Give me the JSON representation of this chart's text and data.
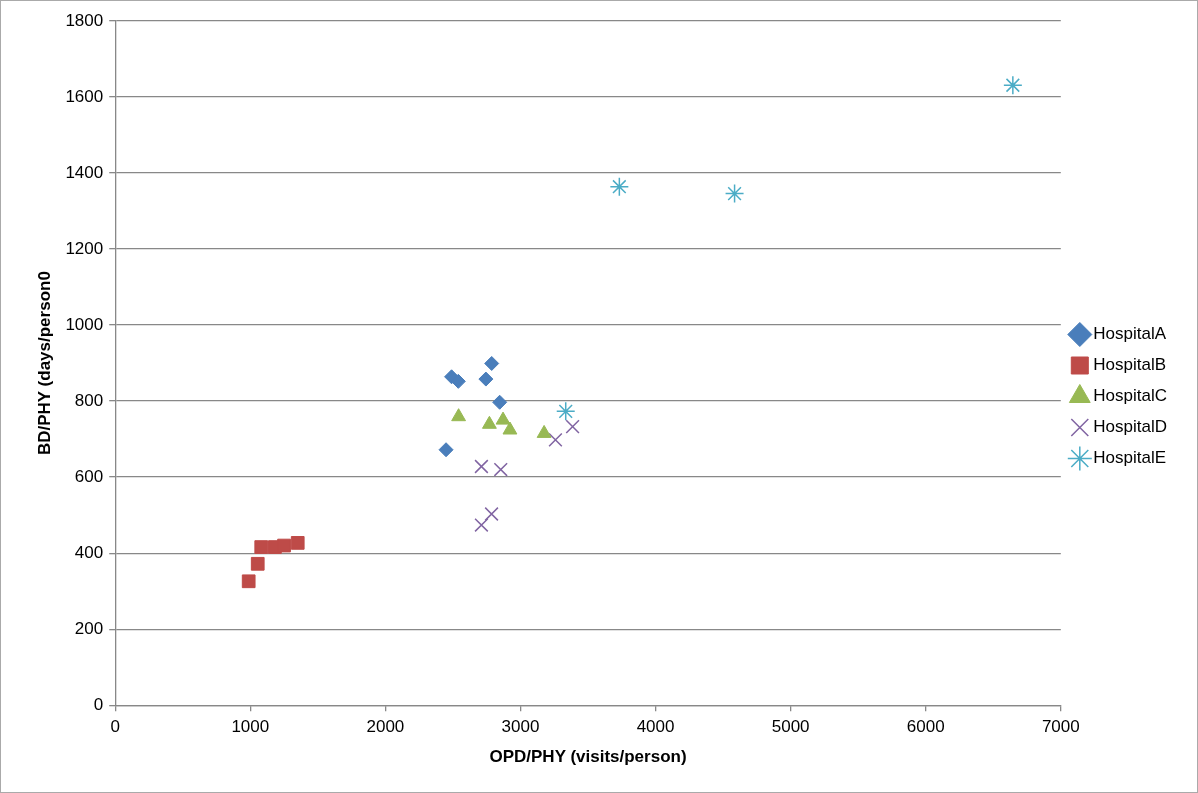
{
  "chart_data": {
    "type": "scatter",
    "xlabel": "OPD/PHY (visits/person)",
    "ylabel": "BD/PHY (days/person0",
    "xlim": [
      0,
      7000
    ],
    "xticks": [
      0,
      1000,
      2000,
      3000,
      4000,
      5000,
      6000,
      7000
    ],
    "ylim": [
      0,
      1800
    ],
    "yticks": [
      0,
      200,
      400,
      600,
      800,
      1000,
      1200,
      1400,
      1600,
      1800
    ],
    "grid": "y",
    "legend": "right",
    "series": [
      {
        "name": "HospitalA",
        "color": "#4a7ebb",
        "marker": "diamond",
        "x": [
          2490,
          2540,
          2744,
          2787,
          2846,
          2449
        ],
        "values": [
          864,
          852,
          858,
          899,
          797,
          672
        ]
      },
      {
        "name": "HospitalB",
        "color": "#be4b48",
        "marker": "square",
        "x": [
          988,
          1055,
          1081,
          1182,
          1250,
          1351
        ],
        "values": [
          326,
          372,
          416,
          416,
          420,
          427
        ]
      },
      {
        "name": "HospitalC",
        "color": "#98b954",
        "marker": "triangle",
        "x": [
          2542,
          2770,
          2871,
          2922,
          3175
        ],
        "values": [
          759,
          739,
          750,
          724,
          715
        ]
      },
      {
        "name": "HospitalD",
        "color": "#8064a2",
        "marker": "cross",
        "x": [
          2711,
          2854,
          2711,
          2786,
          3259,
          3386
        ],
        "values": [
          628,
          620,
          474,
          503,
          698,
          733
        ]
      },
      {
        "name": "HospitalE",
        "color": "#4bacc6",
        "x": [
          3335,
          3732,
          4585,
          6645
        ],
        "values": [
          773,
          1364,
          1346,
          1631
        ]
      }
    ]
  }
}
